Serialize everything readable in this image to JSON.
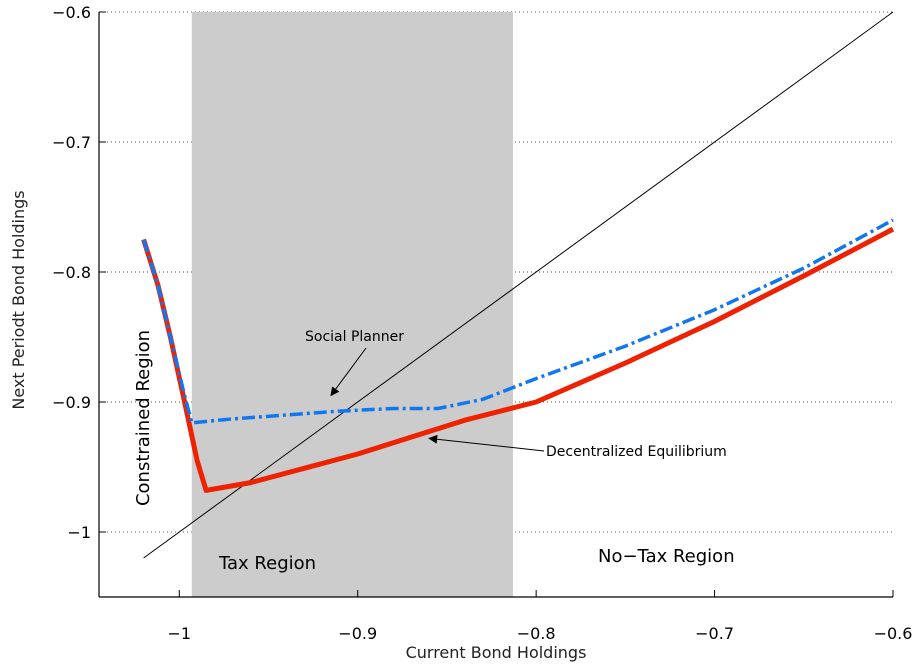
{
  "chart_data": {
    "type": "line",
    "xlabel": "Current Bond Holdings",
    "ylabel": "Next Periodt Bond Holdings",
    "xlim": [
      -1.045,
      -0.6
    ],
    "ylim": [
      -1.05,
      -0.6
    ],
    "xticks": [
      -1,
      -0.9,
      -0.8,
      -0.7,
      -0.6
    ],
    "yticks": [
      -1,
      -0.9,
      -0.8,
      -0.7,
      -0.6
    ],
    "xtick_labels": [
      "−1",
      "−0.9",
      "−0.8",
      "−0.7",
      "−0.6"
    ],
    "ytick_labels": [
      "−1",
      "−0.9",
      "−0.8",
      "−0.7",
      "−0.6"
    ],
    "grid": "horizontal dotted",
    "shaded_region": {
      "x_from": -0.993,
      "x_to": -0.813,
      "color": "#cccccc"
    },
    "series": [
      {
        "name": "Decentralized Equilibrium",
        "style": "solid",
        "color": "#ee2200",
        "x": [
          -1.02,
          -1.012,
          -1.005,
          -0.997,
          -0.99,
          -0.985,
          -0.96,
          -0.93,
          -0.9,
          -0.87,
          -0.84,
          -0.8,
          -0.75,
          -0.7,
          -0.65,
          -0.6
        ],
        "y": [
          -0.775,
          -0.81,
          -0.85,
          -0.9,
          -0.945,
          -0.968,
          -0.962,
          -0.951,
          -0.94,
          -0.927,
          -0.914,
          -0.9,
          -0.87,
          -0.838,
          -0.803,
          -0.767
        ]
      },
      {
        "name": "Social Planner",
        "style": "dash-dot",
        "color": "#1177ee",
        "x": [
          -1.02,
          -1.012,
          -1.005,
          -0.997,
          -0.993,
          -0.97,
          -0.94,
          -0.91,
          -0.88,
          -0.855,
          -0.83,
          -0.8,
          -0.75,
          -0.7,
          -0.65,
          -0.6
        ],
        "y": [
          -0.775,
          -0.81,
          -0.85,
          -0.895,
          -0.916,
          -0.913,
          -0.91,
          -0.907,
          -0.905,
          -0.905,
          -0.898,
          -0.882,
          -0.857,
          -0.829,
          -0.797,
          -0.76
        ]
      },
      {
        "name": "45-degree",
        "style": "solid",
        "color": "#000000",
        "x": [
          -1.02,
          -0.6
        ],
        "y": [
          -1.02,
          -0.6
        ]
      }
    ],
    "region_labels": {
      "constrained": "Constrained Region",
      "tax": "Tax Region",
      "no_tax": "No−Tax Region"
    },
    "annotations": [
      {
        "text": "Social Planner",
        "x": -0.895,
        "y": -0.85,
        "arrow_to": [
          -0.915,
          -0.895
        ]
      },
      {
        "text": "Decentralized Equilibrium",
        "x": -0.795,
        "y": -0.938,
        "arrow_to": [
          -0.86,
          -0.928
        ]
      }
    ]
  }
}
